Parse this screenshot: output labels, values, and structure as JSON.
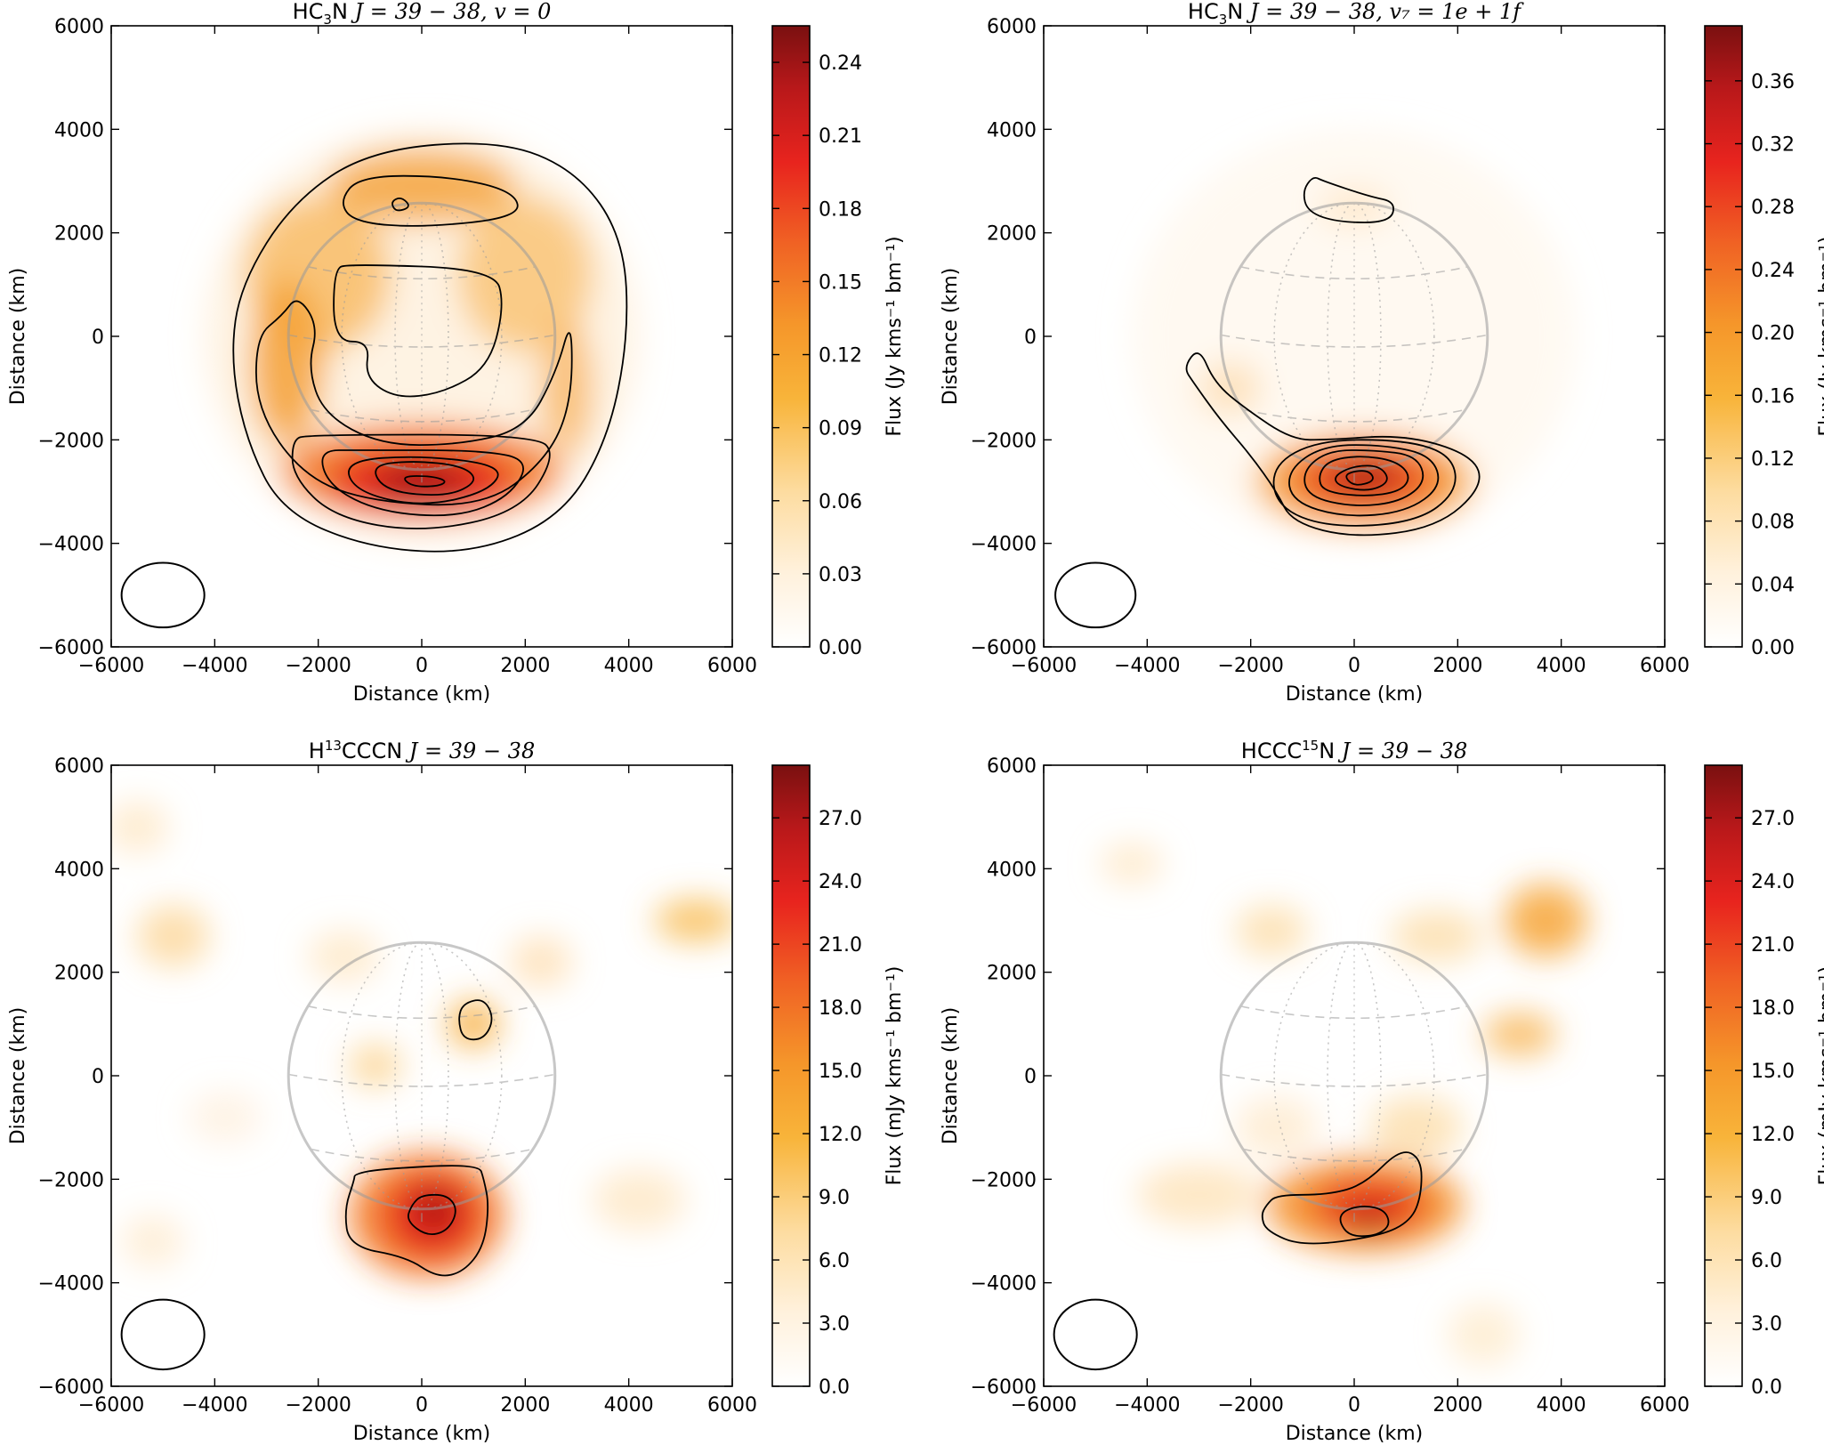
{
  "chart_data": [
    {
      "type": "heatmap",
      "title": {
        "molecule": "HC",
        "sub": "3",
        "molecule_tail": "N",
        "math": "J = 39 − 38, v = 0"
      },
      "xlabel": "Distance (km)",
      "ylabel": "Distance (km)",
      "xlim": [
        -6000,
        6000
      ],
      "ylim": [
        -6000,
        6000
      ],
      "x_ticks": [
        "−6000",
        "−4000",
        "−2000",
        "0",
        "2000",
        "4000",
        "6000"
      ],
      "y_ticks": [
        "−6000",
        "−4000",
        "−2000",
        "0",
        "2000",
        "4000",
        "6000"
      ],
      "colorbar": {
        "label": "Flux (Jy kms⁻¹ bm⁻¹)",
        "min": 0.0,
        "max": 0.255,
        "ticks": [
          0.0,
          0.03,
          0.06,
          0.09,
          0.12,
          0.15,
          0.18,
          0.21,
          0.24
        ],
        "tick_labels": [
          "0.00",
          "0.03",
          "0.06",
          "0.09",
          "0.12",
          "0.15",
          "0.18",
          "0.21",
          "0.24"
        ]
      },
      "emission_peak": {
        "x": 0,
        "y": -2800,
        "flux": 0.25
      },
      "planet_disk_radius_km": 2575,
      "beam": {
        "x": -5000,
        "y": -5000,
        "width_km": 1600,
        "height_km": 1250
      }
    },
    {
      "type": "heatmap",
      "title": {
        "molecule": "HC",
        "sub": "3",
        "molecule_tail": "N",
        "math": "J = 39 − 38, v₇ = 1e + 1f"
      },
      "xlabel": "Distance (km)",
      "ylabel": "Distance (km)",
      "xlim": [
        -6000,
        6000
      ],
      "ylim": [
        -6000,
        6000
      ],
      "x_ticks": [
        "−6000",
        "−4000",
        "−2000",
        "0",
        "2000",
        "4000",
        "6000"
      ],
      "y_ticks": [
        "−6000",
        "−4000",
        "−2000",
        "0",
        "2000",
        "4000",
        "6000"
      ],
      "colorbar": {
        "label": "Flux (Jy kms⁻¹ bm⁻¹)",
        "min": 0.0,
        "max": 0.395,
        "ticks": [
          0.0,
          0.04,
          0.08,
          0.12,
          0.16,
          0.2,
          0.24,
          0.28,
          0.32,
          0.36
        ],
        "tick_labels": [
          "0.00",
          "0.04",
          "0.08",
          "0.12",
          "0.16",
          "0.20",
          "0.24",
          "0.28",
          "0.32",
          "0.36"
        ]
      },
      "emission_peak": {
        "x": 200,
        "y": -2700,
        "flux": 0.39
      },
      "planet_disk_radius_km": 2575,
      "beam": {
        "x": -5000,
        "y": -5000,
        "width_km": 1550,
        "height_km": 1250
      }
    },
    {
      "type": "heatmap",
      "title": {
        "molecule": "H",
        "sup": "13",
        "molecule_tail": "CCCN",
        "math": "J = 39 − 38"
      },
      "xlabel": "Distance (km)",
      "ylabel": "Distance (km)",
      "xlim": [
        -6000,
        6000
      ],
      "ylim": [
        -6000,
        6000
      ],
      "x_ticks": [
        "−6000",
        "−4000",
        "−2000",
        "0",
        "2000",
        "4000",
        "6000"
      ],
      "y_ticks": [
        "−6000",
        "−4000",
        "−2000",
        "0",
        "2000",
        "4000",
        "6000"
      ],
      "colorbar": {
        "label": "Flux (mJy kms⁻¹ bm⁻¹)",
        "min": 0.0,
        "max": 29.5,
        "ticks": [
          0.0,
          3.0,
          6.0,
          9.0,
          12.0,
          15.0,
          18.0,
          21.0,
          24.0,
          27.0
        ],
        "tick_labels": [
          "0.0",
          "3.0",
          "6.0",
          "9.0",
          "12.0",
          "15.0",
          "18.0",
          "21.0",
          "24.0",
          "27.0"
        ]
      },
      "emission_peak": {
        "x": 200,
        "y": -2700,
        "flux": 29
      },
      "planet_disk_radius_km": 2575,
      "beam": {
        "x": -5000,
        "y": -5000,
        "width_km": 1600,
        "height_km": 1350
      }
    },
    {
      "type": "heatmap",
      "title": {
        "molecule": "HCCC",
        "sup": "15",
        "molecule_tail": "N",
        "math": "J = 39 − 38"
      },
      "xlabel": "Distance (km)",
      "ylabel": "Distance (km)",
      "xlim": [
        -6000,
        6000
      ],
      "ylim": [
        -6000,
        6000
      ],
      "x_ticks": [
        "−6000",
        "−4000",
        "−2000",
        "0",
        "2000",
        "4000",
        "6000"
      ],
      "y_ticks": [
        "−6000",
        "−4000",
        "−2000",
        "0",
        "2000",
        "4000",
        "6000"
      ],
      "colorbar": {
        "label": "Flux (mJy kms⁻¹ bm⁻¹)",
        "min": 0.0,
        "max": 29.5,
        "ticks": [
          0.0,
          3.0,
          6.0,
          9.0,
          12.0,
          15.0,
          18.0,
          21.0,
          24.0,
          27.0
        ],
        "tick_labels": [
          "0.0",
          "3.0",
          "6.0",
          "9.0",
          "12.0",
          "15.0",
          "18.0",
          "21.0",
          "24.0",
          "27.0"
        ]
      },
      "emission_peak": {
        "x": 0,
        "y": -2800,
        "flux": 29
      },
      "planet_disk_radius_km": 2575,
      "beam": {
        "x": -5000,
        "y": -5000,
        "width_km": 1600,
        "height_km": 1350
      }
    }
  ]
}
